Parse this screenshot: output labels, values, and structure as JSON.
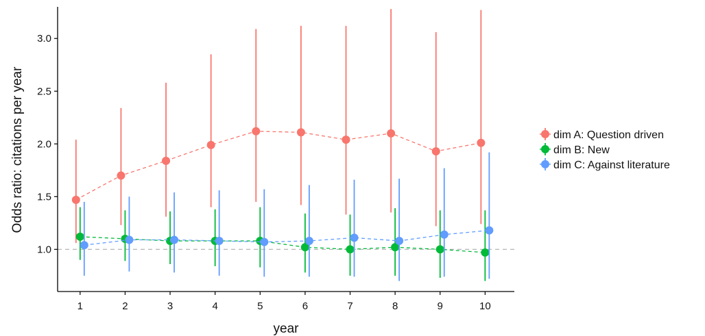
{
  "chart_data": {
    "type": "scatter",
    "title": "",
    "xlabel": "year",
    "ylabel": "Odds ratio: citations per year",
    "x": [
      1,
      2,
      3,
      4,
      5,
      6,
      7,
      8,
      9,
      10
    ],
    "x_ticks": [
      "1",
      "2",
      "3",
      "4",
      "5",
      "6",
      "7",
      "8",
      "9",
      "10"
    ],
    "xlim": [
      0.5,
      10.65
    ],
    "ylim": [
      0.6,
      3.3
    ],
    "y_ticks": [
      1.0,
      1.5,
      2.0,
      2.5,
      3.0
    ],
    "y_tick_labels": [
      "1.0",
      "1.5",
      "2.0",
      "2.5",
      "3.0"
    ],
    "reference_line": 1.0,
    "grid": false,
    "legend_position": "right",
    "series": [
      {
        "name": "dim A: Question driven",
        "color": "#F8766D",
        "values": [
          1.47,
          1.7,
          1.84,
          1.99,
          2.12,
          2.11,
          2.04,
          2.1,
          1.93,
          2.01
        ],
        "lower": [
          1.06,
          1.23,
          1.31,
          1.4,
          1.45,
          1.42,
          1.33,
          1.35,
          1.22,
          1.24
        ],
        "upper": [
          2.04,
          2.34,
          2.58,
          2.85,
          3.09,
          3.12,
          3.12,
          3.28,
          3.06,
          3.27
        ]
      },
      {
        "name": "dim B: New",
        "color": "#00BA38",
        "values": [
          1.12,
          1.1,
          1.08,
          1.08,
          1.08,
          1.02,
          1.0,
          1.02,
          1.0,
          0.97
        ],
        "lower": [
          0.9,
          0.89,
          0.86,
          0.84,
          0.83,
          0.78,
          0.75,
          0.75,
          0.73,
          0.7
        ],
        "upper": [
          1.4,
          1.37,
          1.36,
          1.38,
          1.4,
          1.34,
          1.33,
          1.39,
          1.37,
          1.37
        ]
      },
      {
        "name": "dim C: Against literature",
        "color": "#619CFF",
        "values": [
          1.04,
          1.09,
          1.09,
          1.08,
          1.07,
          1.08,
          1.11,
          1.08,
          1.14,
          1.18
        ],
        "lower": [
          0.75,
          0.79,
          0.78,
          0.75,
          0.74,
          0.74,
          0.74,
          0.7,
          0.74,
          0.72
        ],
        "upper": [
          1.45,
          1.5,
          1.54,
          1.56,
          1.57,
          1.61,
          1.66,
          1.67,
          1.77,
          1.92
        ]
      }
    ]
  }
}
